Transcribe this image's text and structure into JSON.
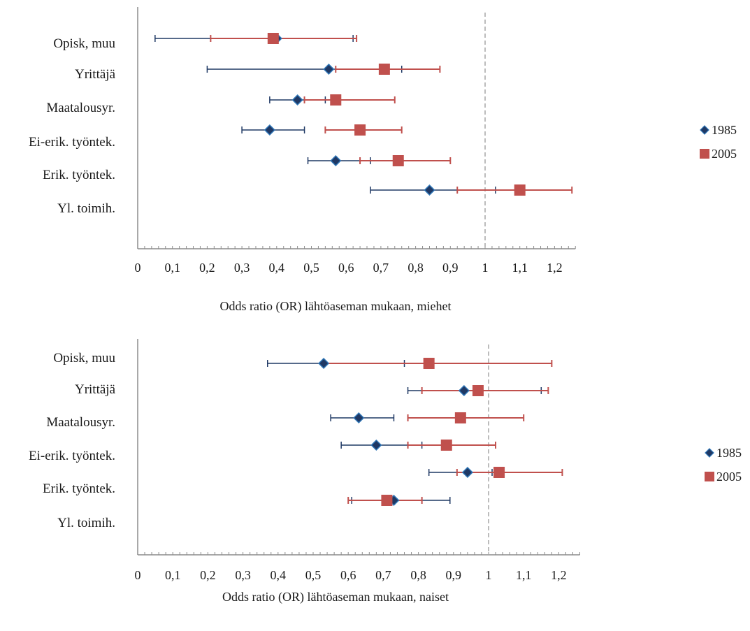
{
  "chart_data": [
    {
      "type": "scatter",
      "title": "",
      "xlabel": "Odds ratio (OR) lähtöaseman mukaan, miehet",
      "ylabel": "",
      "categories": [
        "Opisk, muu",
        "Yrittäjä",
        "Maatalousyr.",
        "Ei-erik. työntek.",
        "Erik. työntek.",
        "Yl. toimih."
      ],
      "xlim": [
        0,
        1.26
      ],
      "x_ticks": [
        "0",
        "0,1",
        "0,2",
        "0,3",
        "0,4",
        "0,5",
        "0,6",
        "0,7",
        "0,8",
        "0,9",
        "1",
        "1,1",
        "1,2"
      ],
      "reference_line": 1,
      "legend_position": "right",
      "series": [
        {
          "name": "1985",
          "color": "#1f3864",
          "marker": "diamond",
          "points": [
            {
              "category": "Opisk, muu",
              "or": 0.4,
              "ci_low": 0.05,
              "ci_high": 0.62
            },
            {
              "category": "Yrittäjä",
              "or": 0.55,
              "ci_low": 0.2,
              "ci_high": 0.76
            },
            {
              "category": "Maatalousyr.",
              "or": 0.46,
              "ci_low": 0.38,
              "ci_high": 0.54
            },
            {
              "category": "Ei-erik. työntek.",
              "or": 0.38,
              "ci_low": 0.3,
              "ci_high": 0.48
            },
            {
              "category": "Erik. työntek.",
              "or": 0.57,
              "ci_low": 0.49,
              "ci_high": 0.67
            },
            {
              "category": "Yl. toimih.",
              "or": 0.84,
              "ci_low": 0.67,
              "ci_high": 1.03
            }
          ]
        },
        {
          "name": "2005",
          "color": "#c0504d",
          "marker": "square",
          "points": [
            {
              "category": "Opisk, muu",
              "or": 0.39,
              "ci_low": 0.21,
              "ci_high": 0.63
            },
            {
              "category": "Yrittäjä",
              "or": 0.71,
              "ci_low": 0.57,
              "ci_high": 0.87
            },
            {
              "category": "Maatalousyr.",
              "or": 0.57,
              "ci_low": 0.48,
              "ci_high": 0.74
            },
            {
              "category": "Ei-erik. työntek.",
              "or": 0.64,
              "ci_low": 0.54,
              "ci_high": 0.76
            },
            {
              "category": "Erik. työntek.",
              "or": 0.75,
              "ci_low": 0.64,
              "ci_high": 0.9
            },
            {
              "category": "Yl. toimih.",
              "or": 1.1,
              "ci_low": 0.92,
              "ci_high": 1.25
            }
          ]
        }
      ]
    },
    {
      "type": "scatter",
      "title": "",
      "xlabel": "Odds ratio (OR) lähtöaseman mukaan, naiset",
      "ylabel": "",
      "categories": [
        "Opisk, muu",
        "Yrittäjä",
        "Maatalousyr.",
        "Ei-erik. työntek.",
        "Erik. työntek.",
        "Yl. toimih."
      ],
      "xlim": [
        0,
        1.26
      ],
      "x_ticks": [
        "0",
        "0,1",
        "0,2",
        "0,3",
        "0,4",
        "0,5",
        "0,6",
        "0,7",
        "0,8",
        "0,9",
        "1",
        "1,1",
        "1,2"
      ],
      "reference_line": 1,
      "legend_position": "right",
      "series": [
        {
          "name": "1985",
          "color": "#1f3864",
          "marker": "diamond",
          "points": [
            {
              "category": "Opisk, muu",
              "or": 0.53,
              "ci_low": 0.37,
              "ci_high": 0.76
            },
            {
              "category": "Yrittäjä",
              "or": 0.93,
              "ci_low": 0.77,
              "ci_high": 1.15
            },
            {
              "category": "Maatalousyr.",
              "or": 0.63,
              "ci_low": 0.55,
              "ci_high": 0.73
            },
            {
              "category": "Ei-erik. työntek.",
              "or": 0.68,
              "ci_low": 0.58,
              "ci_high": 0.81
            },
            {
              "category": "Erik. työntek.",
              "or": 0.94,
              "ci_low": 0.83,
              "ci_high": 1.01
            },
            {
              "category": "Yl. toimih.",
              "or": 0.73,
              "ci_low": 0.61,
              "ci_high": 0.89
            }
          ]
        },
        {
          "name": "2005",
          "color": "#c0504d",
          "marker": "square",
          "points": [
            {
              "category": "Opisk, muu",
              "or": 0.83,
              "ci_low": 0.53,
              "ci_high": 1.18
            },
            {
              "category": "Yrittäjä",
              "or": 0.97,
              "ci_low": 0.81,
              "ci_high": 1.17
            },
            {
              "category": "Maatalousyr.",
              "or": 0.92,
              "ci_low": 0.77,
              "ci_high": 1.1
            },
            {
              "category": "Ei-erik. työntek.",
              "or": 0.88,
              "ci_low": 0.77,
              "ci_high": 1.02
            },
            {
              "category": "Erik. työntek.",
              "or": 1.03,
              "ci_low": 0.91,
              "ci_high": 1.21
            },
            {
              "category": "Yl. toimih.",
              "or": 0.71,
              "ci_low": 0.6,
              "ci_high": 0.81
            }
          ]
        }
      ]
    }
  ]
}
